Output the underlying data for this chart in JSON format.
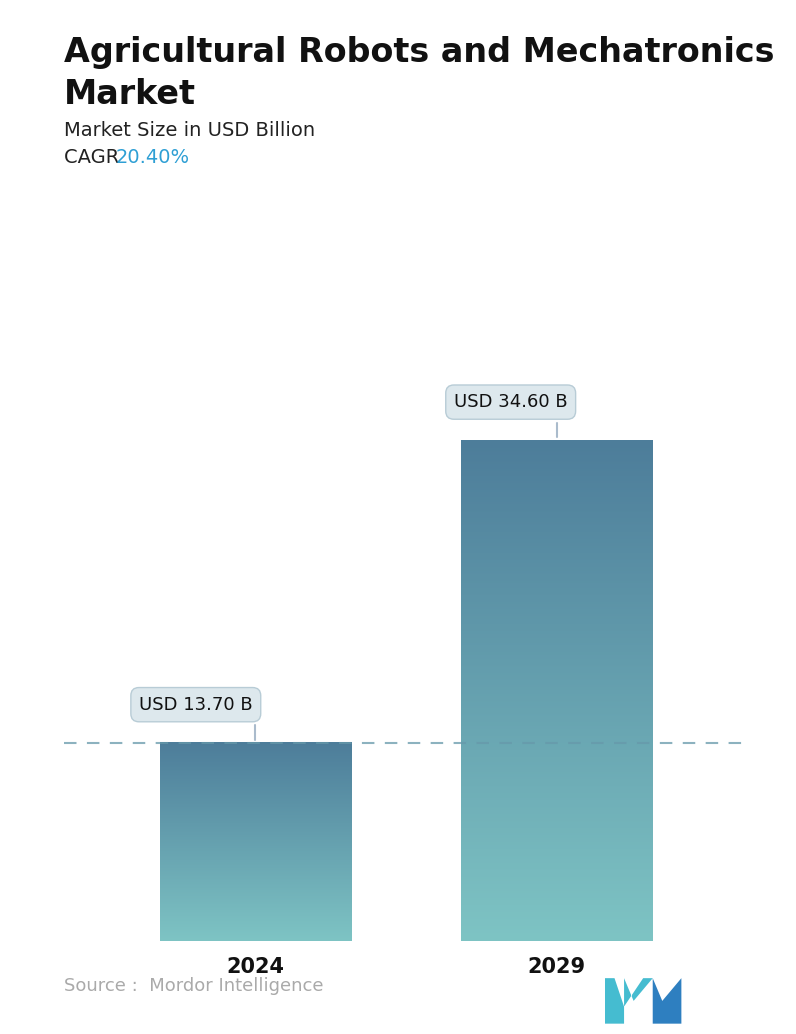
{
  "title_line1": "Agricultural Robots and Mechatronics",
  "title_line2": "Market",
  "subtitle": "Market Size in USD Billion",
  "cagr_label": "CAGR ",
  "cagr_value": "20.40%",
  "cagr_color": "#2e9fd4",
  "categories": [
    "2024",
    "2029"
  ],
  "values": [
    13.7,
    34.6
  ],
  "labels": [
    "USD 13.70 B",
    "USD 34.60 B"
  ],
  "bar_top_color": "#4d7d9a",
  "bar_bottom_color": "#7ec4c4",
  "dashed_line_color": "#6699aa",
  "source_text": "Source :  Mordor Intelligence",
  "source_color": "#aaaaaa",
  "background_color": "#ffffff",
  "title_fontsize": 24,
  "subtitle_fontsize": 14,
  "cagr_fontsize": 14,
  "label_fontsize": 13,
  "tick_fontsize": 15,
  "source_fontsize": 13,
  "ylim_max": 40,
  "x_positions": [
    0.28,
    0.72
  ],
  "bar_width": 0.28
}
